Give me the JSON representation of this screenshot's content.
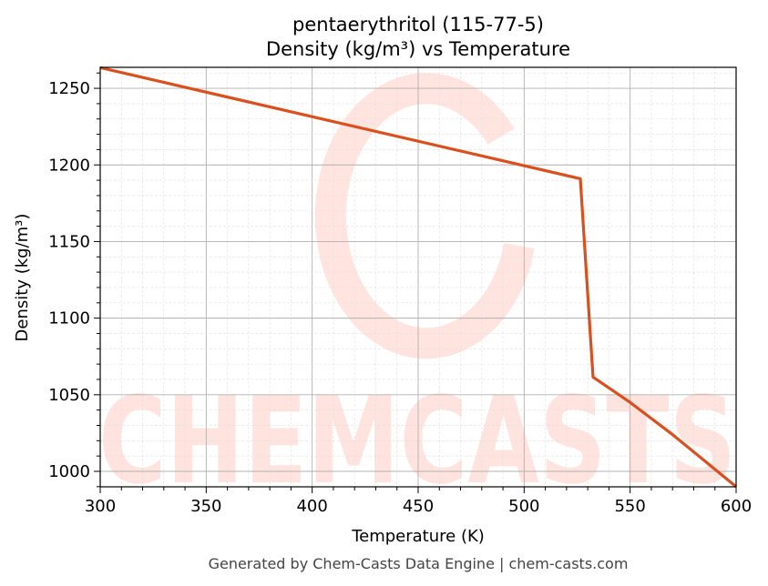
{
  "chart_data": {
    "type": "line",
    "title": "pentaerythritol (115-77-5)",
    "subtitle": "Density (kg/m³) vs Temperature",
    "xlabel": "Temperature (K)",
    "ylabel": "Density (kg/m³)",
    "xlim": [
      300,
      600
    ],
    "ylim": [
      989.9,
      1263.7
    ],
    "xticks": [
      300,
      350,
      400,
      450,
      500,
      550,
      600
    ],
    "yticks": [
      1000,
      1050,
      1100,
      1150,
      1200,
      1250
    ],
    "grid": true,
    "series": [
      {
        "name": "Density",
        "color": "#d9501e",
        "x": [
          300,
          526.5,
          532.5,
          550,
          570,
          600
        ],
        "y": [
          1263.5,
          1191,
          1061.5,
          1045,
          1024,
          990
        ]
      }
    ],
    "watermark": "CHEMCASTS",
    "footer": "Generated by Chem-Casts Data Engine | chem-casts.com"
  }
}
